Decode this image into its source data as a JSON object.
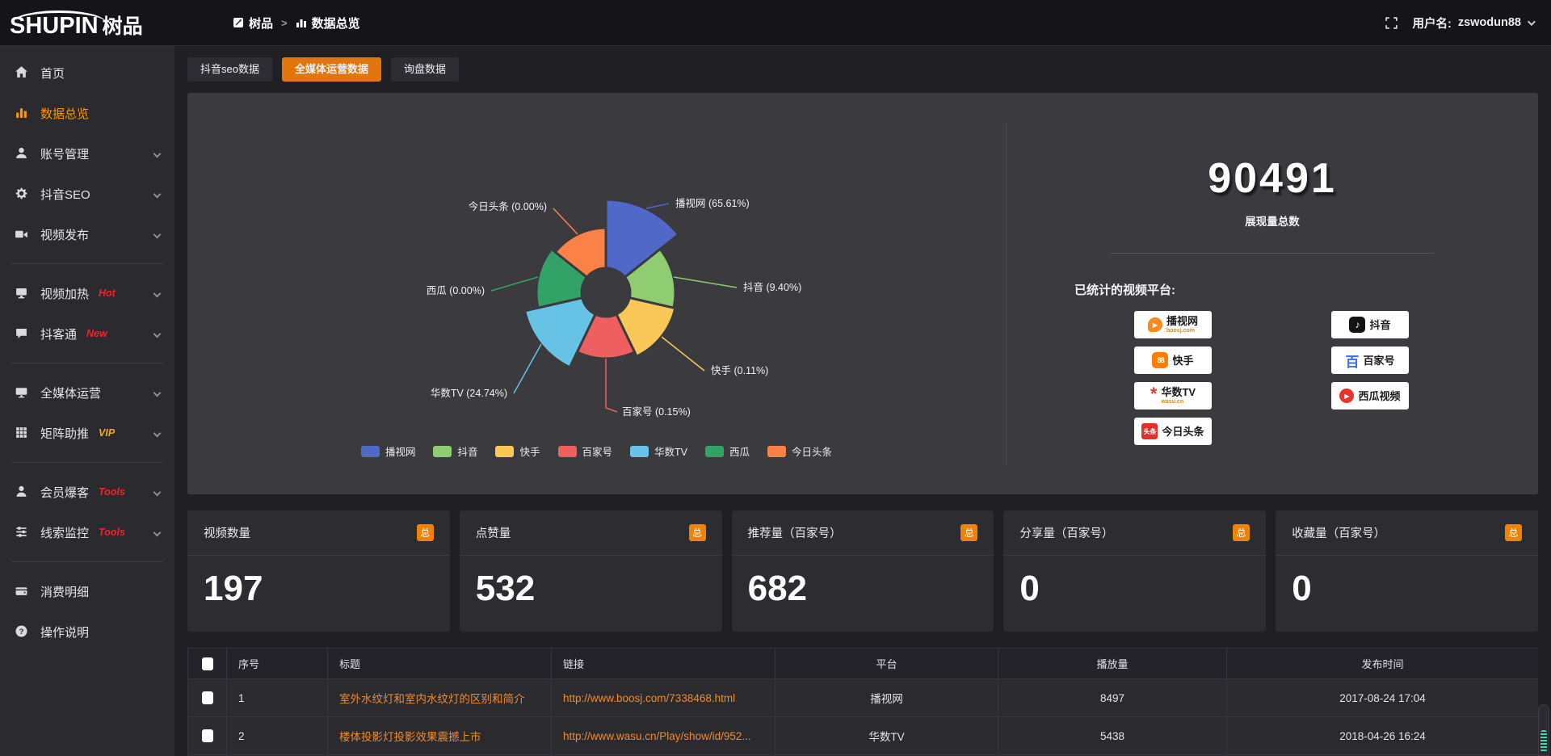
{
  "header": {
    "logo_en": "SHUPIN",
    "logo_cn": "树品",
    "breadcrumb_home": "树品",
    "breadcrumb_sep": ">",
    "breadcrumb_current": "数据总览",
    "user_label": "用户名:",
    "username": "zswodun88"
  },
  "sidebar": {
    "items": [
      {
        "label": "首页",
        "icon": "home"
      },
      {
        "label": "数据总览",
        "icon": "chart",
        "active": true
      },
      {
        "label": "账号管理",
        "icon": "user",
        "chevron": true
      },
      {
        "label": "抖音SEO",
        "icon": "gear",
        "chevron": true
      },
      {
        "label": "视频发布",
        "icon": "publish",
        "chevron": true
      },
      {
        "divider": true
      },
      {
        "label": "视频加热",
        "icon": "heat",
        "badge": "Hot",
        "badge_color": "#f5222d",
        "chevron": true
      },
      {
        "label": "抖客通",
        "icon": "chat",
        "badge": "New",
        "badge_color": "#f5222d",
        "chevron": true
      },
      {
        "divider": true
      },
      {
        "label": "全媒体运营",
        "icon": "monitor",
        "chevron": true
      },
      {
        "label": "矩阵助推",
        "icon": "grid",
        "badge": "VIP",
        "badge_color": "#f5a623",
        "chevron": true
      },
      {
        "divider": true
      },
      {
        "label": "会员爆客",
        "icon": "member",
        "badge": "Tools",
        "badge_color": "#f5222d",
        "chevron": true
      },
      {
        "label": "线索监控",
        "icon": "filter",
        "badge": "Tools",
        "badge_color": "#f5222d",
        "chevron": true
      },
      {
        "divider": true
      },
      {
        "label": "消费明细",
        "icon": "wallet"
      },
      {
        "label": "操作说明",
        "icon": "help"
      }
    ]
  },
  "tabs": [
    {
      "label": "抖音seo数据",
      "active": false
    },
    {
      "label": "全媒体运营数据",
      "active": true
    },
    {
      "label": "询盘数据",
      "active": false
    }
  ],
  "chart_data": {
    "type": "pie",
    "style": "nightingale-rose",
    "items": [
      {
        "name": "播视网",
        "pct": 65.61,
        "color": "#5068c8"
      },
      {
        "name": "抖音",
        "pct": 9.4,
        "color": "#8fcc72"
      },
      {
        "name": "快手",
        "pct": 0.11,
        "color": "#fac858"
      },
      {
        "name": "百家号",
        "pct": 0.15,
        "color": "#ee5f5f"
      },
      {
        "name": "华数TV",
        "pct": 24.74,
        "color": "#67c3e6"
      },
      {
        "name": "西瓜",
        "pct": 0.0,
        "color": "#33a266"
      },
      {
        "name": "今日头条",
        "pct": 0.0,
        "color": "#fc8146"
      }
    ],
    "legend": [
      "播视网",
      "抖音",
      "快手",
      "百家号",
      "华数TV",
      "西瓜",
      "今日头条"
    ],
    "legend_position": "bottom-center"
  },
  "summary": {
    "total": "90491",
    "total_label": "展现量总数",
    "platforms_title": "已统计的视频平台:",
    "platform_badges_left": [
      {
        "name": "播视网",
        "sub": "boosj.com",
        "icon": "boosj"
      },
      {
        "name": "快手",
        "icon": "kuaishou"
      },
      {
        "name": "华数TV",
        "sub": "wasu.cn",
        "icon": "wasu"
      },
      {
        "name": "今日头条",
        "icon": "toutiao"
      }
    ],
    "platform_badges_right": [
      {
        "name": "抖音",
        "icon": "douyin"
      },
      {
        "name": "百家号",
        "icon": "baijiahao"
      },
      {
        "name": "西瓜视频",
        "icon": "xigua"
      }
    ]
  },
  "stat_cards": [
    {
      "title": "视频数量",
      "badge": "总",
      "value": "197"
    },
    {
      "title": "点赞量",
      "badge": "总",
      "value": "532"
    },
    {
      "title": "推荐量（百家号）",
      "badge": "总",
      "value": "682"
    },
    {
      "title": "分享量（百家号）",
      "badge": "总",
      "value": "0"
    },
    {
      "title": "收藏量（百家号）",
      "badge": "总",
      "value": "0"
    }
  ],
  "table": {
    "headers": [
      "序号",
      "标题",
      "链接",
      "平台",
      "播放量",
      "发布时间"
    ],
    "rows": [
      {
        "no": "1",
        "title": "室外水纹灯和室内水纹灯的区别和简介",
        "link": "http://www.boosj.com/7338468.html",
        "platform": "播视网",
        "plays": "8497",
        "time": "2017-08-24 17:04"
      },
      {
        "no": "2",
        "title": "楼体投影灯投影效果震撼上市",
        "link": "http://www.wasu.cn/Play/show/id/952...",
        "platform": "华数TV",
        "plays": "5438",
        "time": "2018-04-26 16:24"
      },
      {
        "no": "",
        "title": "",
        "link": "",
        "platform": "",
        "plays": "",
        "time": ""
      }
    ]
  },
  "colors": {
    "accent_orange": "#e2760c",
    "badge_orange": "#ef8201",
    "link_orange": "#ee8b33",
    "panel_bg": "#3a3a3f",
    "card_bg": "#2c2c31",
    "sidebar_bg": "#2a2a2f",
    "header_bg": "#141419"
  }
}
